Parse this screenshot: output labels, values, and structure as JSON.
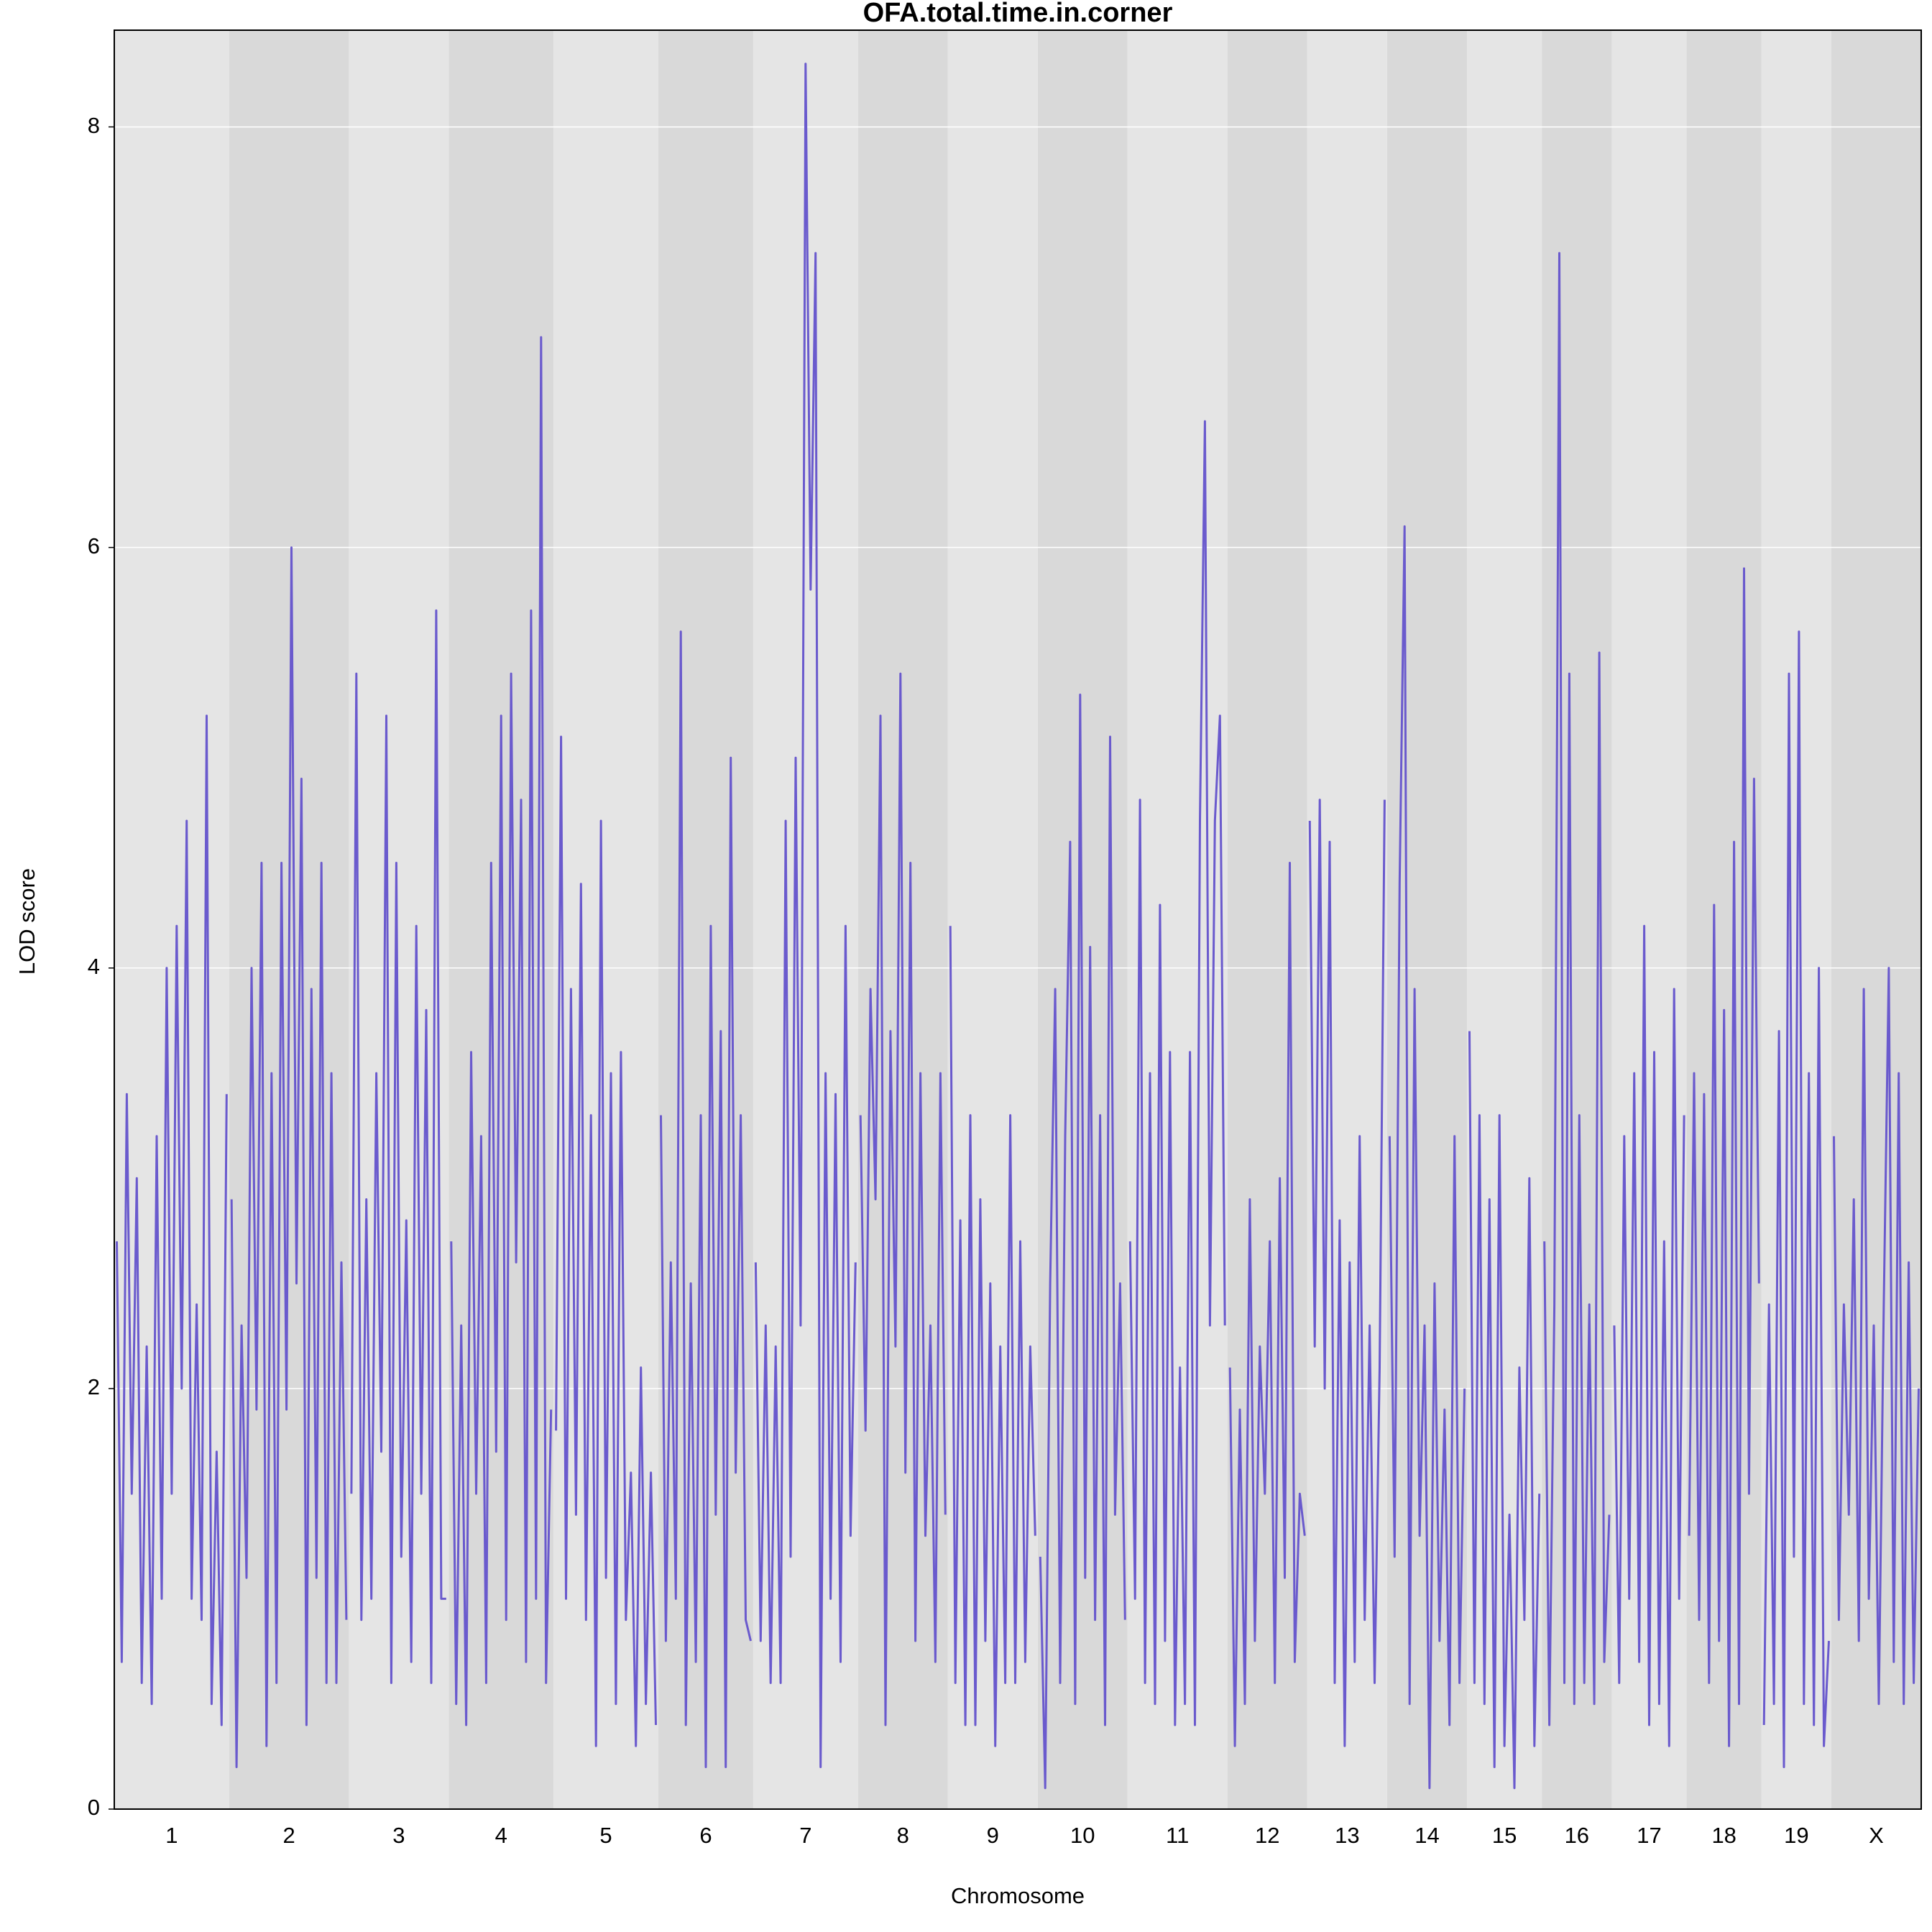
{
  "chart_data": {
    "type": "line",
    "title": "OFA.total.time.in.corner",
    "x_label": "Chromosome",
    "y_label": "LOD score",
    "ylim": [
      0,
      8.46
    ],
    "yticks": [
      0,
      2,
      4,
      6,
      8
    ],
    "grid": true,
    "color": "#6a5acd",
    "band_colors": [
      "#e5e5e5",
      "#d9d9d9"
    ],
    "series": [
      {
        "name": "1",
        "values": [
          2.7,
          0.7,
          3.4,
          1.5,
          3.0,
          0.6,
          2.2,
          0.5,
          3.2,
          1.0,
          4.0,
          1.5,
          4.2,
          2.0,
          4.7,
          1.0,
          2.4,
          0.9,
          5.2,
          0.5,
          1.7,
          0.4,
          3.4
        ]
      },
      {
        "name": "2",
        "values": [
          2.9,
          0.2,
          2.3,
          1.1,
          4.0,
          1.9,
          4.5,
          0.3,
          3.5,
          0.6,
          4.5,
          1.9,
          6.0,
          2.5,
          4.9,
          0.4,
          3.9,
          1.1,
          4.5,
          0.6,
          3.5,
          0.6,
          2.6,
          0.9
        ]
      },
      {
        "name": "3",
        "values": [
          1.5,
          5.4,
          0.9,
          2.9,
          1.0,
          3.5,
          1.7,
          5.2,
          0.6,
          4.5,
          1.2,
          2.8,
          0.7,
          4.2,
          1.5,
          3.8,
          0.6,
          5.7,
          1.0,
          1.0
        ]
      },
      {
        "name": "4",
        "values": [
          2.7,
          0.5,
          2.3,
          0.4,
          3.6,
          1.5,
          3.2,
          0.6,
          4.5,
          1.7,
          5.2,
          0.9,
          5.4,
          2.6,
          4.8,
          0.7,
          5.7,
          1.0,
          7.0,
          0.6,
          1.9
        ]
      },
      {
        "name": "5",
        "values": [
          1.8,
          5.1,
          1.0,
          3.9,
          1.4,
          4.4,
          0.9,
          3.3,
          0.3,
          4.7,
          1.1,
          3.5,
          0.5,
          3.6,
          0.9,
          1.6,
          0.3,
          2.1,
          0.5,
          1.6,
          0.4
        ]
      },
      {
        "name": "6",
        "values": [
          3.3,
          0.8,
          2.6,
          1.0,
          5.6,
          0.4,
          2.5,
          0.7,
          3.3,
          0.2,
          4.2,
          1.4,
          3.7,
          0.2,
          5.0,
          1.6,
          3.3,
          0.9,
          0.8
        ]
      },
      {
        "name": "7",
        "values": [
          2.6,
          0.8,
          2.3,
          0.6,
          2.2,
          0.6,
          4.7,
          1.2,
          5.0,
          2.3,
          8.3,
          5.8,
          7.4,
          0.2,
          3.5,
          1.0,
          3.4,
          0.7,
          4.2,
          1.3,
          2.6
        ]
      },
      {
        "name": "8",
        "values": [
          3.3,
          1.8,
          3.9,
          2.9,
          5.2,
          0.4,
          3.7,
          2.2,
          5.4,
          1.6,
          4.5,
          0.8,
          3.5,
          1.3,
          2.3,
          0.7,
          3.5,
          1.4
        ]
      },
      {
        "name": "9",
        "values": [
          4.2,
          0.6,
          2.8,
          0.4,
          3.3,
          0.4,
          2.9,
          0.8,
          2.5,
          0.3,
          2.2,
          0.6,
          3.3,
          0.6,
          2.7,
          0.7,
          2.2,
          1.3
        ]
      },
      {
        "name": "10",
        "values": [
          1.2,
          0.1,
          2.5,
          3.9,
          0.6,
          3.2,
          4.6,
          0.5,
          5.3,
          1.1,
          4.1,
          0.9,
          3.3,
          0.4,
          5.1,
          1.4,
          2.5,
          0.9
        ]
      },
      {
        "name": "11",
        "values": [
          2.7,
          1.0,
          4.8,
          0.6,
          3.5,
          0.5,
          4.3,
          0.8,
          3.6,
          0.4,
          2.1,
          0.5,
          3.6,
          0.4,
          4.7,
          6.6,
          2.3,
          4.7,
          5.2,
          2.3
        ]
      },
      {
        "name": "12",
        "values": [
          2.1,
          0.3,
          1.9,
          0.5,
          2.9,
          0.8,
          2.2,
          1.5,
          2.7,
          0.6,
          3.0,
          1.1,
          4.5,
          0.7,
          1.5,
          1.3
        ]
      },
      {
        "name": "13",
        "values": [
          4.7,
          2.2,
          4.8,
          2.0,
          4.6,
          0.6,
          2.8,
          0.3,
          2.6,
          0.7,
          3.2,
          0.9,
          2.3,
          0.6,
          2.1,
          4.8
        ]
      },
      {
        "name": "14",
        "values": [
          3.2,
          1.2,
          4.4,
          6.1,
          0.5,
          3.9,
          1.3,
          2.3,
          0.1,
          2.5,
          0.8,
          1.9,
          0.4,
          3.2,
          0.6,
          2.0
        ]
      },
      {
        "name": "15",
        "values": [
          3.7,
          0.6,
          3.3,
          0.5,
          2.9,
          0.2,
          3.3,
          0.3,
          1.4,
          0.1,
          2.1,
          0.9,
          3.0,
          0.3,
          1.5
        ]
      },
      {
        "name": "16",
        "values": [
          2.7,
          0.4,
          2.4,
          7.4,
          0.6,
          5.4,
          0.5,
          3.3,
          0.6,
          2.4,
          0.5,
          5.5,
          0.7,
          1.4
        ]
      },
      {
        "name": "17",
        "values": [
          2.3,
          0.6,
          3.2,
          1.0,
          3.5,
          0.7,
          4.2,
          0.4,
          3.6,
          0.5,
          2.7,
          0.3,
          3.9,
          1.0,
          3.3
        ]
      },
      {
        "name": "18",
        "values": [
          1.3,
          3.5,
          0.9,
          3.4,
          0.6,
          4.3,
          0.8,
          3.8,
          0.3,
          4.6,
          0.5,
          5.9,
          1.5,
          4.9,
          2.5
        ]
      },
      {
        "name": "19",
        "values": [
          0.4,
          2.4,
          0.5,
          3.7,
          0.2,
          5.4,
          1.2,
          5.6,
          0.5,
          3.5,
          0.4,
          4.0,
          0.3,
          0.8
        ]
      },
      {
        "name": "X",
        "values": [
          3.2,
          0.9,
          2.4,
          1.4,
          2.9,
          0.8,
          3.9,
          1.0,
          2.3,
          0.5,
          2.4,
          4.0,
          0.7,
          3.5,
          0.5,
          2.6,
          0.6,
          2.0
        ]
      }
    ]
  }
}
